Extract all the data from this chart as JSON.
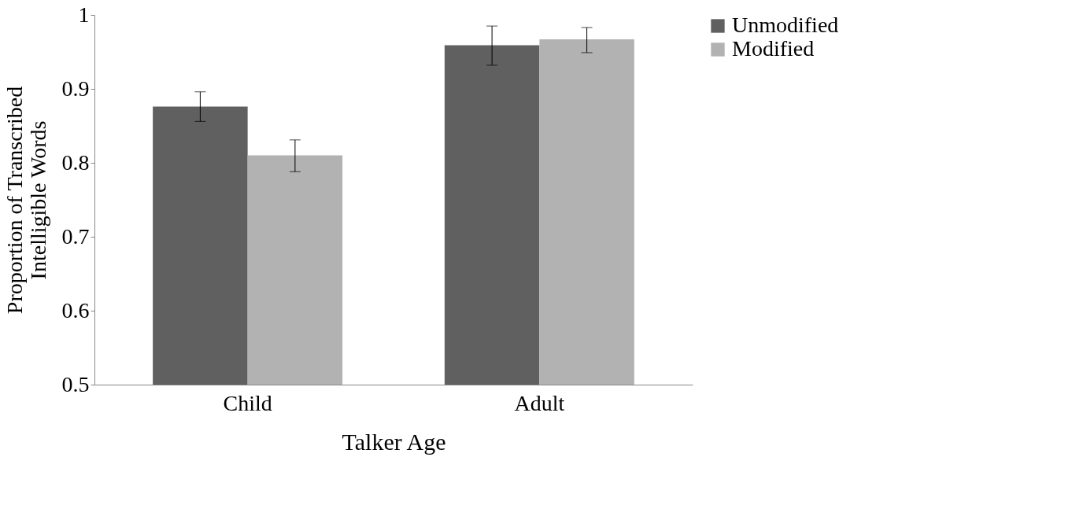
{
  "chart_data": {
    "type": "bar",
    "xlabel": "Talker Age",
    "ylabel": "Proportion of Transcribed\nIntelligible Words",
    "categories": [
      "Child",
      "Adult"
    ],
    "series": [
      {
        "name": "Unmodified",
        "color": "#606060",
        "values": [
          0.876,
          0.959
        ],
        "errors": [
          [
            0.856,
            0.896
          ],
          [
            0.932,
            0.985
          ]
        ]
      },
      {
        "name": "Modified",
        "color": "#b2b2b2",
        "values": [
          0.81,
          0.967
        ],
        "errors": [
          [
            0.788,
            0.831
          ],
          [
            0.949,
            0.983
          ]
        ]
      }
    ],
    "ylim": [
      0.5,
      1
    ],
    "yticks": [
      0.5,
      0.6,
      0.7,
      0.8,
      0.9,
      1
    ],
    "grid": false,
    "legend": "right"
  }
}
